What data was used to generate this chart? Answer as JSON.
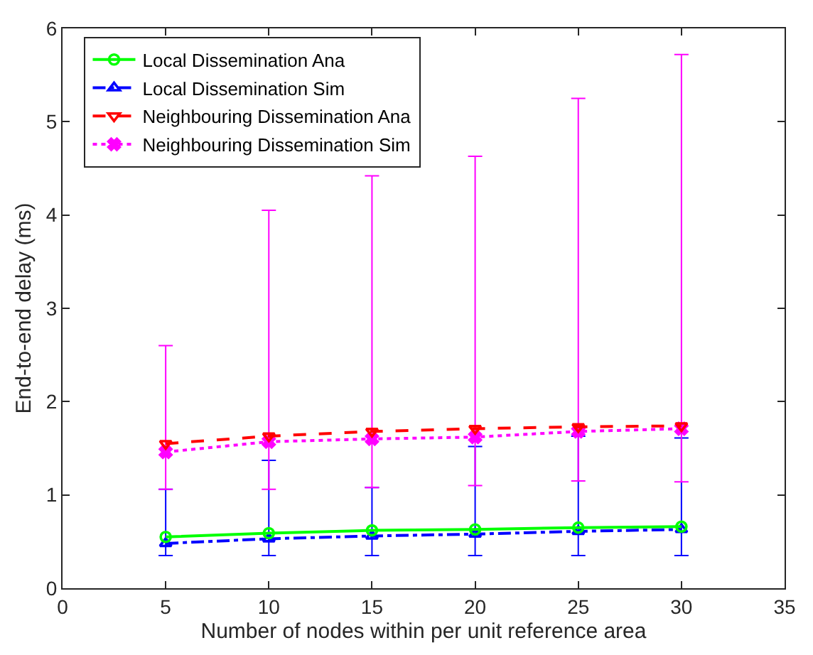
{
  "chart_data": {
    "type": "line",
    "xlabel": "Number of nodes within per unit reference area",
    "ylabel": "End-to-end delay (ms)",
    "x": [
      5,
      10,
      15,
      20,
      25,
      30
    ],
    "xlim": [
      0,
      35
    ],
    "xticks": [
      0,
      5,
      10,
      15,
      20,
      25,
      30,
      35
    ],
    "ylim": [
      0,
      6
    ],
    "yticks": [
      0,
      1,
      2,
      3,
      4,
      5,
      6
    ],
    "legend": "top left",
    "series": [
      {
        "name": "Local Dissemination Ana",
        "color": "#00ff00",
        "marker": "circle",
        "line_style": "solid",
        "values": [
          0.55,
          0.59,
          0.62,
          0.63,
          0.65,
          0.66
        ]
      },
      {
        "name": "Local Dissemination Sim",
        "color": "#0000ff",
        "marker": "triangle",
        "line_style": "dashdot",
        "values": [
          0.48,
          0.53,
          0.56,
          0.58,
          0.61,
          0.63
        ],
        "errors": [
          [
            0.35,
            1.06
          ],
          [
            0.35,
            1.37
          ],
          [
            0.35,
            1.08
          ],
          [
            0.35,
            1.52
          ],
          [
            0.35,
            1.63
          ],
          [
            0.35,
            1.61
          ]
        ]
      },
      {
        "name": "Neighbouring Dissemination Ana",
        "color": "#ff0000",
        "marker": "triangle-down",
        "line_style": "dashed",
        "values": [
          1.55,
          1.63,
          1.68,
          1.71,
          1.73,
          1.74
        ]
      },
      {
        "name": "Neighbouring Dissemination Sim",
        "color": "#ff00ff",
        "marker": "cross",
        "line_style": "dotted",
        "values": [
          1.46,
          1.57,
          1.6,
          1.62,
          1.68,
          1.71
        ],
        "errors": [
          [
            1.06,
            2.6
          ],
          [
            1.06,
            4.05
          ],
          [
            1.08,
            4.42
          ],
          [
            1.1,
            4.63
          ],
          [
            1.15,
            5.25
          ],
          [
            1.14,
            5.72
          ]
        ]
      }
    ]
  }
}
